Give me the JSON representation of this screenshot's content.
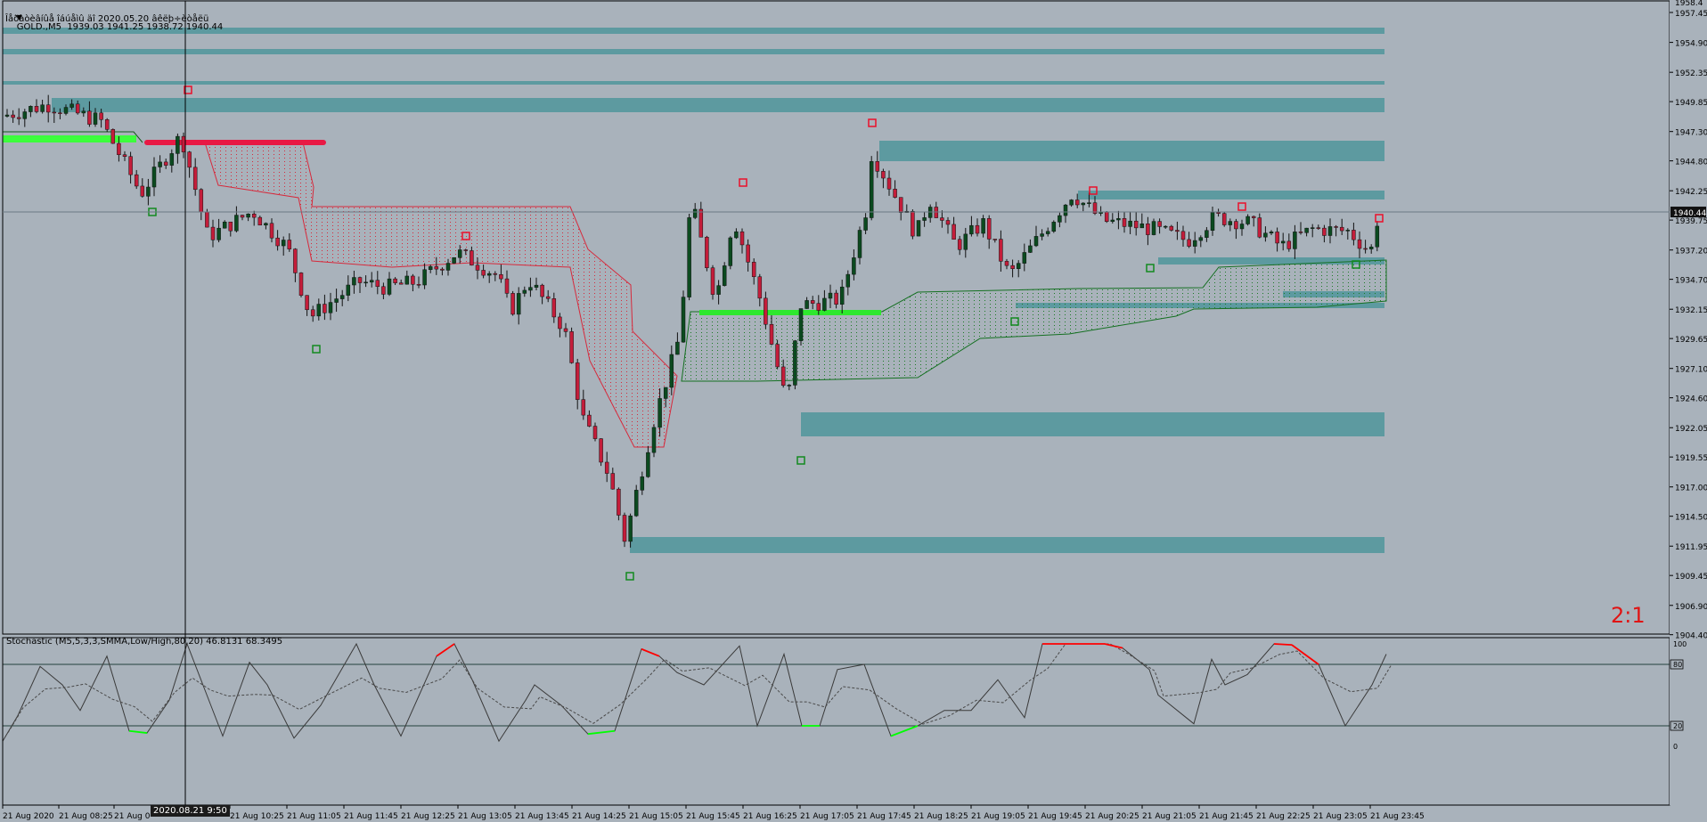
{
  "symbol_line": {
    "icon": "triangle-down-icon",
    "text": "GOLD.,M5  1939.03 1941.25 1938.72 1940.44"
  },
  "subtitle": "Îåðàòèâíûå îáúåìû äî 2020.05.20 âêëþ÷èòåëü",
  "ratio_label": "2:1",
  "stochastic_title": "Stochastic (M5,5,3,3,SMMA,Low/High,80,20) 46.8131 68.3495",
  "price_axis": {
    "labels": [
      "1957.45",
      "1954.90",
      "1952.35",
      "1949.85",
      "1947.30",
      "1944.80",
      "1942.25",
      "1939.75",
      "1937.20",
      "1934.70",
      "1932.15",
      "1929.65",
      "1927.10",
      "1924.60",
      "1922.05",
      "1919.55",
      "1917.00",
      "1914.50",
      "1911.95",
      "1909.45",
      "1906.90",
      "1904.40"
    ],
    "top_label": "1958.4",
    "current_price": "1940.44"
  },
  "stochastic_axis": {
    "labels": [
      "100",
      "80",
      "20",
      "0"
    ]
  },
  "time_axis": {
    "labels": [
      "21 Aug 2020",
      "21 Aug 08:25",
      "21 Aug 0",
      "21 Aug 10:25",
      "21 Aug 11:05",
      "21 Aug 11:45",
      "21 Aug 12:25",
      "21 Aug 13:05",
      "21 Aug 13:45",
      "21 Aug 14:25",
      "21 Aug 15:05",
      "21 Aug 15:45",
      "21 Aug 16:25",
      "21 Aug 17:05",
      "21 Aug 17:45",
      "21 Aug 18:25",
      "21 Aug 19:05",
      "21 Aug 19:45",
      "21 Aug 20:25",
      "21 Aug 21:05",
      "21 Aug 21:45",
      "21 Aug 22:25",
      "21 Aug 23:05",
      "21 Aug 23:45"
    ],
    "crosshair_tag": "2020.08.21 9:50"
  },
  "colors": {
    "background": "#a9b2bb",
    "bull": "#0b4a1f",
    "bear": "#c41d3a",
    "zone": "#5d9aa0",
    "high_mark": "#ea0f2a",
    "low_mark": "#128a1f",
    "stoch_high": "#ff0000",
    "stoch_low": "#00ff00"
  }
}
